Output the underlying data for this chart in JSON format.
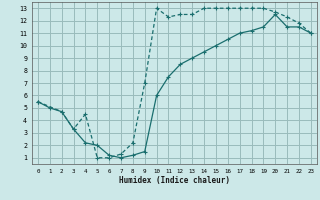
{
  "xlabel": "Humidex (Indice chaleur)",
  "bg_color": "#cce8e8",
  "grid_color": "#99bbbb",
  "line_color": "#1a6e6e",
  "xlim": [
    -0.5,
    23.5
  ],
  "ylim": [
    0.5,
    13.5
  ],
  "xticks": [
    0,
    1,
    2,
    3,
    4,
    5,
    6,
    7,
    8,
    9,
    10,
    11,
    12,
    13,
    14,
    15,
    16,
    17,
    18,
    19,
    20,
    21,
    22,
    23
  ],
  "yticks": [
    1,
    2,
    3,
    4,
    5,
    6,
    7,
    8,
    9,
    10,
    11,
    12,
    13
  ],
  "curve1_x": [
    0,
    1,
    2,
    3,
    4,
    5,
    6,
    7,
    8,
    9,
    10,
    11,
    12,
    13,
    14,
    15,
    16,
    17,
    18,
    19,
    20,
    21,
    22,
    23
  ],
  "curve1_y": [
    5.5,
    5.0,
    4.7,
    3.3,
    2.2,
    2.0,
    1.2,
    1.0,
    1.2,
    1.5,
    6.0,
    7.5,
    8.5,
    9.0,
    9.5,
    10.0,
    10.5,
    11.0,
    11.2,
    11.5,
    12.5,
    11.5,
    11.5,
    11.0
  ],
  "curve2_x": [
    0,
    2,
    3,
    4,
    5,
    6,
    7,
    8,
    9,
    10,
    11,
    12,
    13,
    14,
    15,
    16,
    17,
    18,
    19,
    20,
    21,
    22,
    23
  ],
  "curve2_y": [
    5.5,
    4.7,
    3.3,
    4.5,
    1.0,
    1.0,
    1.3,
    2.2,
    7.0,
    13.0,
    12.3,
    12.5,
    12.5,
    13.0,
    13.0,
    13.0,
    13.0,
    13.0,
    13.0,
    12.7,
    12.3,
    11.8,
    11.0
  ]
}
